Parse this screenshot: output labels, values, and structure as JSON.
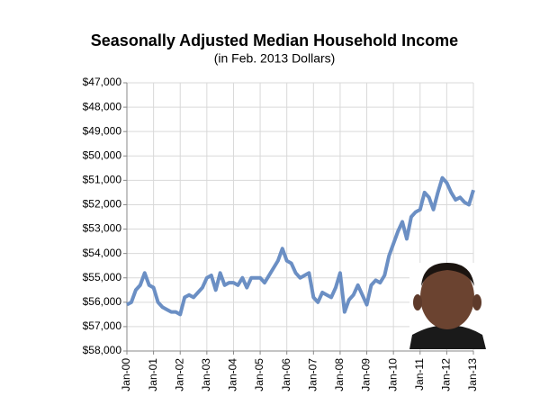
{
  "chart_data": {
    "type": "line",
    "title": "Seasonally Adjusted Median Household Income",
    "subtitle": "(in Feb. 2013 Dollars)",
    "categories": [
      "Jan-00",
      null,
      null,
      null,
      null,
      null,
      "Jan-01",
      null,
      null,
      null,
      null,
      null,
      "Jan-02",
      null,
      null,
      null,
      null,
      null,
      "Jan-03",
      null,
      null,
      null,
      null,
      null,
      "Jan-04",
      null,
      null,
      null,
      null,
      null,
      "Jan-05",
      null,
      null,
      null,
      null,
      null,
      "Jan-06",
      null,
      null,
      null,
      null,
      null,
      "Jan-07",
      null,
      null,
      null,
      null,
      null,
      "Jan-08",
      null,
      null,
      null,
      null,
      null,
      "Jan-09",
      null,
      null,
      null,
      null,
      null,
      "Jan-10",
      null,
      null,
      null,
      null,
      null,
      "Jan-11",
      null,
      null,
      null,
      null,
      null,
      "Jan-12",
      null,
      null,
      null,
      null,
      null,
      "Jan-13"
    ],
    "series": [
      {
        "color": "#6b8fc4",
        "values": [
          56100,
          56000,
          55500,
          55300,
          54800,
          55300,
          55400,
          56000,
          56200,
          56300,
          56400,
          56400,
          56500,
          55800,
          55700,
          55800,
          55600,
          55400,
          55000,
          54900,
          55500,
          54800,
          55300,
          55200,
          55200,
          55300,
          55000,
          55400,
          55000,
          55000,
          55000,
          55200,
          54900,
          54600,
          54300,
          53800,
          54300,
          54400,
          54800,
          55000,
          54900,
          54800,
          55800,
          56000,
          55600,
          55700,
          55800,
          55400,
          54800,
          56400,
          55900,
          55700,
          55300,
          55700,
          56100,
          55300,
          55100,
          55200,
          54900,
          54100,
          53600,
          53100,
          52700,
          53400,
          52500,
          52300,
          52200,
          51500,
          51700,
          52200,
          51500,
          50900,
          51100,
          51500,
          51800,
          51700,
          51900,
          52000,
          51400
        ]
      }
    ],
    "ylim": [
      58000,
      47000
    ],
    "yticks": [
      {
        "value": 47000,
        "label": "$47,000"
      },
      {
        "value": 48000,
        "label": "$48,000"
      },
      {
        "value": 49000,
        "label": "$49,000"
      },
      {
        "value": 50000,
        "label": "$50,000"
      },
      {
        "value": 51000,
        "label": "$51,000"
      },
      {
        "value": 52000,
        "label": "$52,000"
      },
      {
        "value": 53000,
        "label": "$53,000"
      },
      {
        "value": 54000,
        "label": "$54,000"
      },
      {
        "value": 55000,
        "label": "$55,000"
      },
      {
        "value": 56000,
        "label": "$56,000"
      },
      {
        "value": 57000,
        "label": "$57,000"
      },
      {
        "value": 58000,
        "label": "$58,000"
      }
    ],
    "grid": true
  }
}
